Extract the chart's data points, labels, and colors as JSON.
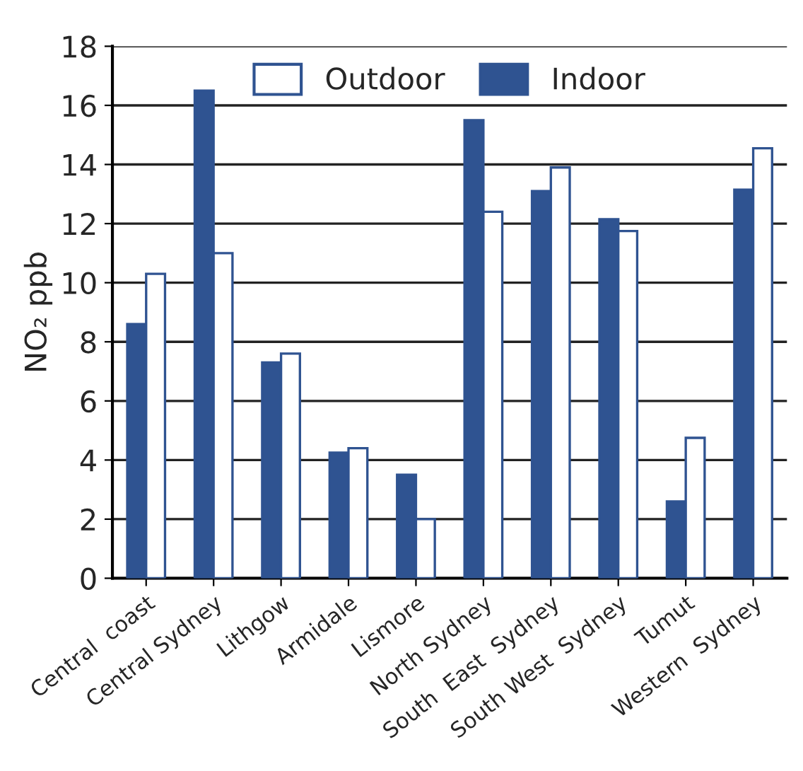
{
  "chart_data": {
    "type": "bar",
    "ylabel": "NO₂ ppb",
    "categories": [
      "Central  coast",
      "Central Sydney",
      "Lithgow",
      "Armidale",
      "Lismore",
      "North Sydney",
      "South  East  Sydney",
      "South West  Sydney",
      "Tumut",
      "Western  Sydney"
    ],
    "series": [
      {
        "name": "Indoor",
        "color": "#2f5391",
        "values": [
          8.6,
          16.5,
          7.3,
          4.25,
          3.5,
          15.5,
          13.1,
          12.15,
          2.6,
          13.15
        ]
      },
      {
        "name": "Outdoor",
        "color": "#ffffff",
        "values": [
          10.3,
          11.0,
          7.6,
          4.4,
          2.0,
          12.4,
          13.9,
          11.75,
          4.75,
          14.55
        ]
      }
    ],
    "ylim": [
      0,
      18
    ],
    "yticks": [
      0,
      2,
      4,
      6,
      8,
      10,
      12,
      14,
      16,
      18
    ],
    "grid": "y",
    "legend": "top"
  }
}
